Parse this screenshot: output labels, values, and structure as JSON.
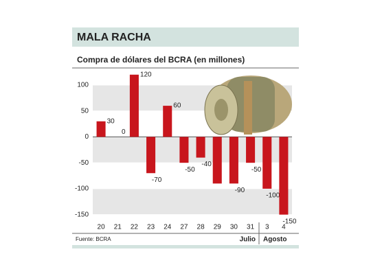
{
  "chart_data": {
    "type": "bar",
    "title": "MALA RACHA",
    "subtitle": "Compra de dólares del BCRA (en millones)",
    "source": "Fuente: BCRA",
    "months": [
      "Julio",
      "Agosto"
    ],
    "categories": [
      "20",
      "21",
      "22",
      "23",
      "24",
      "27",
      "28",
      "29",
      "30",
      "31",
      "3",
      "4"
    ],
    "values": [
      30,
      0,
      120,
      -70,
      60,
      -50,
      -40,
      -90,
      -90,
      -50,
      -100,
      -150
    ],
    "value_labels": [
      "30",
      "0",
      "120",
      "-70",
      "60",
      "-50",
      "-40",
      null,
      "-90",
      "-50",
      "-100",
      "-150"
    ],
    "color": "#c8161d",
    "ylim": [
      -165,
      125
    ],
    "yticks": [
      -150,
      -100,
      -50,
      0,
      50,
      100
    ]
  }
}
